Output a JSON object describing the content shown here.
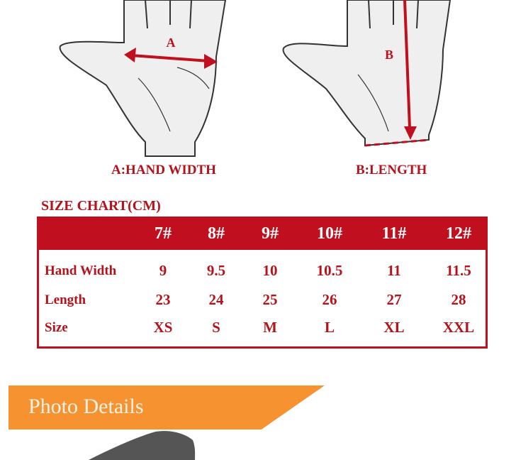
{
  "diagram": {
    "label_a": "A",
    "label_b": "B",
    "caption_a": "A:HAND WIDTH",
    "caption_b": "B:LENGTH",
    "accent_color": "#c0101f"
  },
  "size_chart": {
    "title": "SIZE CHART(CM)",
    "columns": [
      "7#",
      "8#",
      "9#",
      "10#",
      "11#",
      "12#"
    ],
    "rows": [
      {
        "label": "Hand Width",
        "values": [
          "9",
          "9.5",
          "10",
          "10.5",
          "11",
          "11.5"
        ]
      },
      {
        "label": "Length",
        "values": [
          "23",
          "24",
          "25",
          "26",
          "27",
          "28"
        ]
      },
      {
        "label": "Size",
        "values": [
          "XS",
          "S",
          "M",
          "L",
          "XL",
          "XXL"
        ]
      }
    ]
  },
  "banner": {
    "title": "Photo Details",
    "color": "#f79230"
  }
}
